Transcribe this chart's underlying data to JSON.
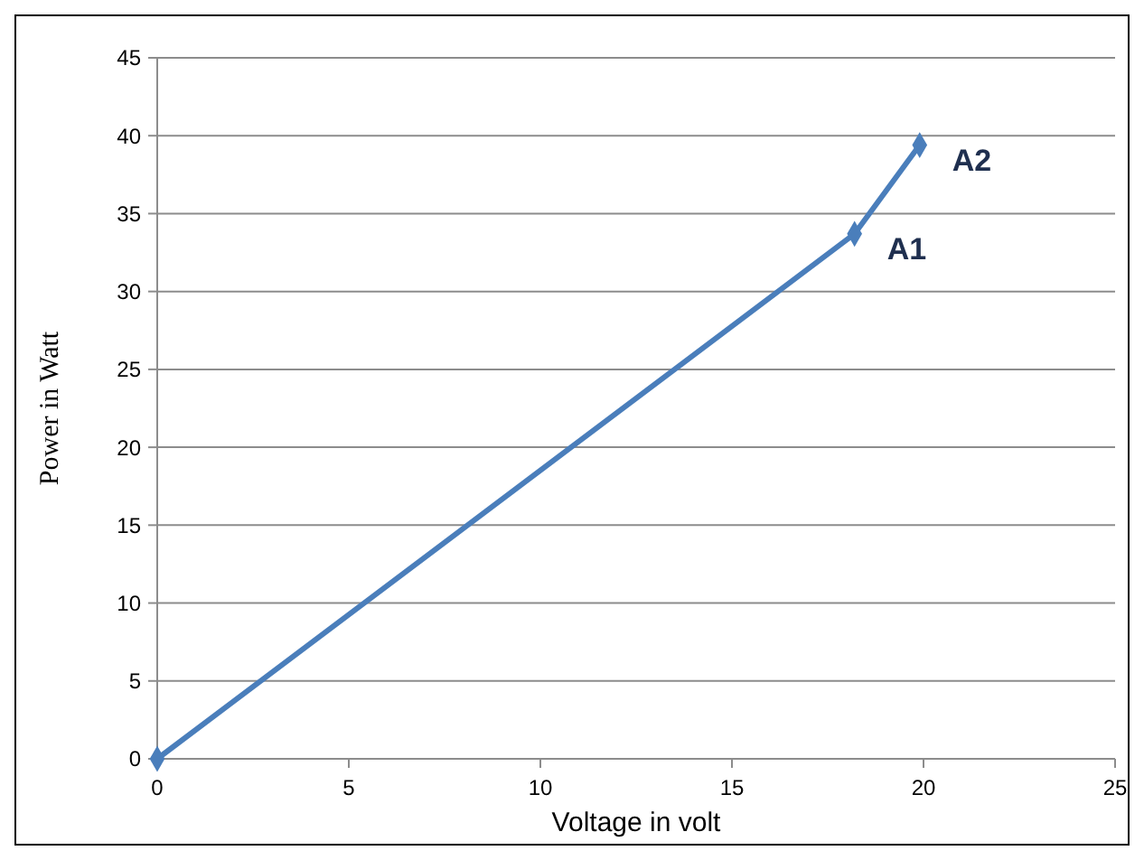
{
  "chart_data": {
    "type": "line",
    "xlabel": "Voltage in volt",
    "ylabel": "Power in Watt",
    "x": [
      0,
      18.2,
      19.9
    ],
    "series": [
      {
        "color": "#4a7ebb",
        "values": [
          0,
          33.7,
          39.4
        ]
      }
    ],
    "xlim": [
      0,
      25
    ],
    "xticks": [
      0,
      5,
      10,
      15,
      20,
      25
    ],
    "ylim": [
      0,
      45
    ],
    "yticks": [
      0,
      5,
      10,
      15,
      20,
      25,
      30,
      35,
      40,
      45
    ],
    "grid": "y",
    "marker": "diamond",
    "line_style": "solid",
    "annotations": [
      {
        "text": "A1",
        "x": 18.2,
        "y": 33.7
      },
      {
        "text": "A2",
        "x": 19.9,
        "y": 39.4
      }
    ]
  }
}
